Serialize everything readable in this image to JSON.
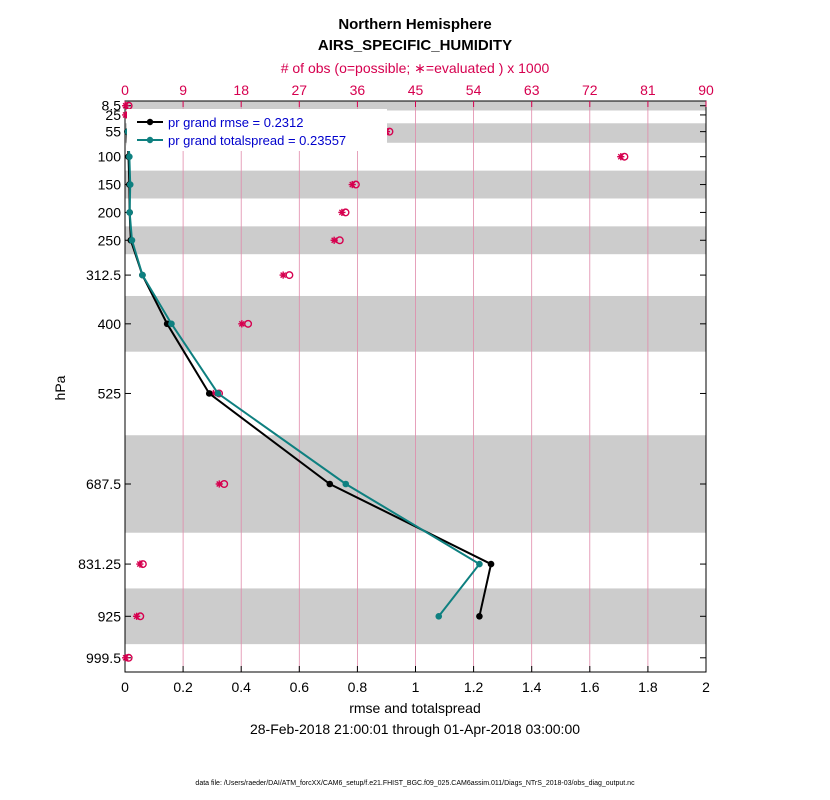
{
  "chart_data": {
    "type": "line",
    "title": "Northern Hemisphere",
    "subtitle": "AIRS_SPECIFIC_HUMIDITY",
    "top_axis_label": "# of obs (o=possible; ∗=evaluated ) x 1000",
    "xlabel": "rmse and totalspread",
    "ylabel": "hPa",
    "date_range": "28-Feb-2018 21:00:01 through 01-Apr-2018 03:00:00",
    "footnote": "data file: /Users/raeder/DAI/ATM_forcXX/CAM6_setup/f.e21.FHIST_BGC.f09_025.CAM6assim.011/Diags_NTrS_2018-03/obs_diag_output.nc",
    "xlim": [
      0,
      2
    ],
    "x_ticks": [
      0,
      0.2,
      0.4,
      0.6,
      0.8,
      1,
      1.2,
      1.4,
      1.6,
      1.8,
      2
    ],
    "x_tick_labels": [
      "0",
      "0.2",
      "0.4",
      "0.6",
      "0.8",
      "1",
      "1.2",
      "1.4",
      "1.6",
      "1.8",
      "2"
    ],
    "top_xlim": [
      0,
      90
    ],
    "top_ticks": [
      0,
      9,
      18,
      27,
      36,
      45,
      54,
      63,
      72,
      81,
      90
    ],
    "top_tick_labels": [
      "0",
      "9",
      "18",
      "27",
      "36",
      "45",
      "54",
      "63",
      "72",
      "81",
      "90"
    ],
    "ylim": [
      1025,
      0
    ],
    "levels": [
      8.5,
      25,
      55,
      100,
      150,
      200,
      250,
      312.5,
      400,
      525,
      687.5,
      831.25,
      925,
      999.5
    ],
    "level_labels": [
      "8.5",
      "25",
      "55",
      "100",
      "150",
      "200",
      "250",
      "312.5",
      "400",
      "525",
      "687.5",
      "831.25",
      "925",
      "999.5"
    ],
    "shaded_bands_hPa": [
      [
        0,
        17
      ],
      [
        40,
        75
      ],
      [
        125,
        175
      ],
      [
        225,
        275
      ],
      [
        350,
        450
      ],
      [
        600,
        775
      ],
      [
        875,
        975
      ]
    ],
    "series": [
      {
        "name": "pr grand rmse = 0.2312",
        "color": "#000000",
        "levels": [
          55,
          100,
          150,
          200,
          250,
          312.5,
          400,
          525,
          687.5,
          831.25,
          925
        ],
        "values": [
          0.008,
          0.012,
          0.015,
          0.016,
          0.02,
          0.06,
          0.145,
          0.29,
          0.705,
          1.26,
          1.22
        ]
      },
      {
        "name": "pr grand totalspread = 0.23557",
        "color": "#0e8080",
        "levels": [
          55,
          100,
          150,
          200,
          250,
          312.5,
          400,
          525,
          687.5,
          831.25,
          925
        ],
        "values": [
          0.01,
          0.015,
          0.018,
          0.016,
          0.024,
          0.06,
          0.16,
          0.32,
          0.76,
          1.22,
          1.08
        ]
      }
    ],
    "obs_counts": {
      "unit": "x 1000",
      "levels": [
        8.5,
        25,
        55,
        100,
        150,
        200,
        250,
        312.5,
        400,
        525,
        687.5,
        831.25,
        925,
        999.5
      ],
      "possible": [
        0.1,
        0.1,
        40.5,
        76.9,
        35.3,
        33.7,
        32.8,
        25.0,
        18.6,
        14.1,
        14.9,
        2.3,
        1.9,
        0.1
      ],
      "evaluated": [
        0.1,
        0.1,
        40.5,
        76.8,
        35.2,
        33.6,
        32.4,
        24.5,
        18.1,
        13.7,
        14.6,
        2.3,
        1.8,
        0.1
      ]
    }
  }
}
